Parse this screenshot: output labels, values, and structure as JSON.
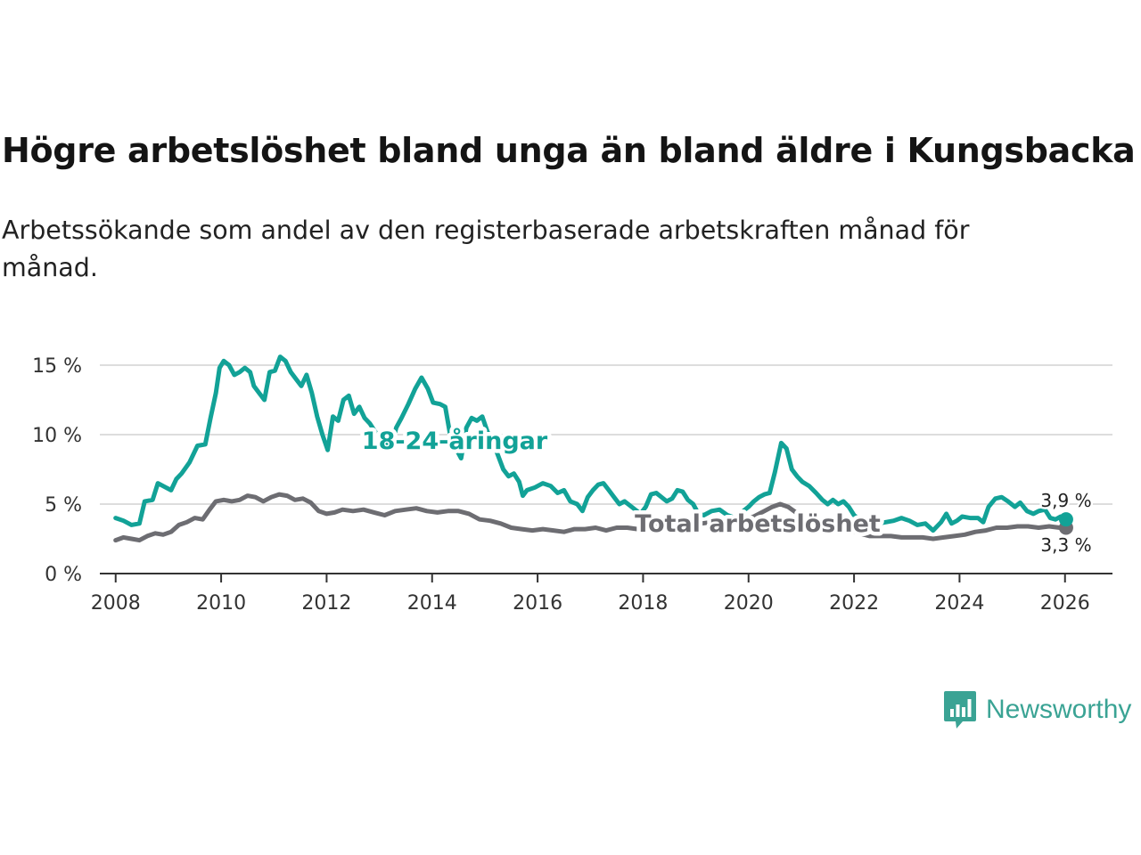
{
  "title": "Högre arbetslöshet bland unga än bland äldre i Kungsbacka",
  "subtitle": "Arbetssökande som andel av den registerbaserade arbetskraften månad för månad.",
  "brand": {
    "name": "Newsworthy",
    "icon": "newsworthy-logo-icon",
    "color": "#3aa394"
  },
  "chart_data": {
    "type": "line",
    "title": "Högre arbetslöshet bland unga än bland äldre i Kungsbacka",
    "xlabel": "",
    "ylabel": "",
    "xlim": [
      2007.7,
      2026.9
    ],
    "ylim": [
      0,
      15
    ],
    "x_ticks": [
      "2008",
      "2010",
      "2012",
      "2014",
      "2016",
      "2018",
      "2020",
      "2022",
      "2024",
      "2026"
    ],
    "y_ticks": [
      "0 %",
      "5 %",
      "10 %",
      "15 %"
    ],
    "grid": true,
    "series": [
      {
        "name": "18-24-åringar",
        "color": "#12a297",
        "end_label": "3,9 %",
        "points": [
          [
            2008.0,
            4.0
          ],
          [
            2008.15,
            3.8
          ],
          [
            2008.3,
            3.5
          ],
          [
            2008.45,
            3.6
          ],
          [
            2008.55,
            5.2
          ],
          [
            2008.7,
            5.3
          ],
          [
            2008.8,
            6.5
          ],
          [
            2008.95,
            6.2
          ],
          [
            2009.05,
            6.0
          ],
          [
            2009.15,
            6.8
          ],
          [
            2009.25,
            7.2
          ],
          [
            2009.4,
            8.0
          ],
          [
            2009.55,
            9.2
          ],
          [
            2009.7,
            9.3
          ],
          [
            2009.8,
            11.2
          ],
          [
            2009.9,
            13.0
          ],
          [
            2009.97,
            14.8
          ],
          [
            2010.05,
            15.3
          ],
          [
            2010.15,
            15.0
          ],
          [
            2010.25,
            14.3
          ],
          [
            2010.35,
            14.5
          ],
          [
            2010.45,
            14.8
          ],
          [
            2010.55,
            14.5
          ],
          [
            2010.62,
            13.5
          ],
          [
            2010.72,
            13.0
          ],
          [
            2010.82,
            12.5
          ],
          [
            2010.92,
            14.5
          ],
          [
            2011.02,
            14.6
          ],
          [
            2011.12,
            15.6
          ],
          [
            2011.22,
            15.3
          ],
          [
            2011.32,
            14.5
          ],
          [
            2011.42,
            14.0
          ],
          [
            2011.52,
            13.5
          ],
          [
            2011.62,
            14.3
          ],
          [
            2011.72,
            13.0
          ],
          [
            2011.82,
            11.3
          ],
          [
            2011.92,
            10.0
          ],
          [
            2012.02,
            8.9
          ],
          [
            2012.12,
            11.3
          ],
          [
            2012.22,
            11.0
          ],
          [
            2012.32,
            12.5
          ],
          [
            2012.42,
            12.8
          ],
          [
            2012.52,
            11.5
          ],
          [
            2012.62,
            12.0
          ],
          [
            2012.72,
            11.2
          ],
          [
            2012.82,
            10.8
          ],
          [
            2012.92,
            10.2
          ],
          [
            2013.02,
            9.8
          ],
          [
            2013.12,
            9.3
          ],
          [
            2013.22,
            9.0
          ],
          [
            2013.32,
            10.5
          ],
          [
            2013.42,
            11.2
          ],
          [
            2013.55,
            12.2
          ],
          [
            2013.68,
            13.3
          ],
          [
            2013.8,
            14.1
          ],
          [
            2013.92,
            13.3
          ],
          [
            2014.02,
            12.3
          ],
          [
            2014.15,
            12.2
          ],
          [
            2014.25,
            12.0
          ],
          [
            2014.35,
            9.8
          ],
          [
            2014.45,
            9.0
          ],
          [
            2014.55,
            8.3
          ],
          [
            2014.65,
            10.5
          ],
          [
            2014.75,
            11.2
          ],
          [
            2014.85,
            11.0
          ],
          [
            2014.95,
            11.3
          ],
          [
            2015.05,
            10.2
          ],
          [
            2015.15,
            9.5
          ],
          [
            2015.25,
            8.5
          ],
          [
            2015.35,
            7.5
          ],
          [
            2015.45,
            7.0
          ],
          [
            2015.55,
            7.2
          ],
          [
            2015.65,
            6.6
          ],
          [
            2015.72,
            5.6
          ],
          [
            2015.8,
            6.0
          ],
          [
            2015.95,
            6.2
          ],
          [
            2016.1,
            6.5
          ],
          [
            2016.25,
            6.3
          ],
          [
            2016.38,
            5.8
          ],
          [
            2016.5,
            6.0
          ],
          [
            2016.62,
            5.2
          ],
          [
            2016.75,
            5.0
          ],
          [
            2016.85,
            4.5
          ],
          [
            2016.95,
            5.5
          ],
          [
            2017.05,
            6.0
          ],
          [
            2017.15,
            6.4
          ],
          [
            2017.25,
            6.5
          ],
          [
            2017.35,
            6.0
          ],
          [
            2017.45,
            5.5
          ],
          [
            2017.55,
            5.0
          ],
          [
            2017.65,
            5.2
          ],
          [
            2017.75,
            4.9
          ],
          [
            2017.85,
            4.6
          ],
          [
            2017.95,
            4.3
          ],
          [
            2018.05,
            4.8
          ],
          [
            2018.15,
            5.7
          ],
          [
            2018.25,
            5.8
          ],
          [
            2018.35,
            5.5
          ],
          [
            2018.45,
            5.2
          ],
          [
            2018.55,
            5.4
          ],
          [
            2018.65,
            6.0
          ],
          [
            2018.75,
            5.9
          ],
          [
            2018.85,
            5.3
          ],
          [
            2018.95,
            5.0
          ],
          [
            2019.05,
            4.3
          ],
          [
            2019.15,
            4.2
          ],
          [
            2019.3,
            4.5
          ],
          [
            2019.45,
            4.6
          ],
          [
            2019.6,
            4.2
          ],
          [
            2019.75,
            4.0
          ],
          [
            2019.9,
            4.5
          ],
          [
            2020.0,
            4.8
          ],
          [
            2020.1,
            5.2
          ],
          [
            2020.2,
            5.5
          ],
          [
            2020.3,
            5.7
          ],
          [
            2020.4,
            5.8
          ],
          [
            2020.5,
            7.3
          ],
          [
            2020.62,
            9.4
          ],
          [
            2020.72,
            9.0
          ],
          [
            2020.82,
            7.5
          ],
          [
            2020.92,
            7.0
          ],
          [
            2021.02,
            6.6
          ],
          [
            2021.15,
            6.3
          ],
          [
            2021.28,
            5.8
          ],
          [
            2021.4,
            5.3
          ],
          [
            2021.5,
            5.0
          ],
          [
            2021.6,
            5.3
          ],
          [
            2021.7,
            5.0
          ],
          [
            2021.8,
            5.2
          ],
          [
            2021.9,
            4.8
          ],
          [
            2022.0,
            4.2
          ],
          [
            2022.15,
            3.8
          ],
          [
            2022.3,
            3.7
          ],
          [
            2022.45,
            3.6
          ],
          [
            2022.6,
            3.7
          ],
          [
            2022.75,
            3.8
          ],
          [
            2022.9,
            4.0
          ],
          [
            2023.05,
            3.8
          ],
          [
            2023.2,
            3.5
          ],
          [
            2023.35,
            3.6
          ],
          [
            2023.5,
            3.1
          ],
          [
            2023.65,
            3.7
          ],
          [
            2023.75,
            4.3
          ],
          [
            2023.85,
            3.6
          ],
          [
            2023.95,
            3.8
          ],
          [
            2024.05,
            4.1
          ],
          [
            2024.2,
            4.0
          ],
          [
            2024.35,
            4.0
          ],
          [
            2024.45,
            3.7
          ],
          [
            2024.55,
            4.8
          ],
          [
            2024.68,
            5.4
          ],
          [
            2024.8,
            5.5
          ],
          [
            2024.92,
            5.2
          ],
          [
            2025.05,
            4.8
          ],
          [
            2025.15,
            5.1
          ],
          [
            2025.28,
            4.5
          ],
          [
            2025.4,
            4.3
          ],
          [
            2025.5,
            4.5
          ],
          [
            2025.62,
            4.6
          ],
          [
            2025.72,
            4.0
          ],
          [
            2025.82,
            3.9
          ],
          [
            2025.92,
            4.1
          ],
          [
            2026.02,
            3.9
          ]
        ]
      },
      {
        "name": "Total arbetslöshet",
        "color": "#6d6d72",
        "end_label": "3,3 %",
        "points": [
          [
            2008.0,
            2.4
          ],
          [
            2008.15,
            2.6
          ],
          [
            2008.3,
            2.5
          ],
          [
            2008.45,
            2.4
          ],
          [
            2008.6,
            2.7
          ],
          [
            2008.75,
            2.9
          ],
          [
            2008.9,
            2.8
          ],
          [
            2009.05,
            3.0
          ],
          [
            2009.2,
            3.5
          ],
          [
            2009.35,
            3.7
          ],
          [
            2009.5,
            4.0
          ],
          [
            2009.65,
            3.9
          ],
          [
            2009.78,
            4.6
          ],
          [
            2009.9,
            5.2
          ],
          [
            2010.05,
            5.3
          ],
          [
            2010.2,
            5.2
          ],
          [
            2010.35,
            5.3
          ],
          [
            2010.5,
            5.6
          ],
          [
            2010.65,
            5.5
          ],
          [
            2010.8,
            5.2
          ],
          [
            2010.95,
            5.5
          ],
          [
            2011.1,
            5.7
          ],
          [
            2011.25,
            5.6
          ],
          [
            2011.4,
            5.3
          ],
          [
            2011.55,
            5.4
          ],
          [
            2011.7,
            5.1
          ],
          [
            2011.85,
            4.5
          ],
          [
            2012.0,
            4.3
          ],
          [
            2012.15,
            4.4
          ],
          [
            2012.3,
            4.6
          ],
          [
            2012.5,
            4.5
          ],
          [
            2012.7,
            4.6
          ],
          [
            2012.9,
            4.4
          ],
          [
            2013.1,
            4.2
          ],
          [
            2013.3,
            4.5
          ],
          [
            2013.5,
            4.6
          ],
          [
            2013.7,
            4.7
          ],
          [
            2013.9,
            4.5
          ],
          [
            2014.1,
            4.4
          ],
          [
            2014.3,
            4.5
          ],
          [
            2014.5,
            4.5
          ],
          [
            2014.7,
            4.3
          ],
          [
            2014.9,
            3.9
          ],
          [
            2015.1,
            3.8
          ],
          [
            2015.3,
            3.6
          ],
          [
            2015.5,
            3.3
          ],
          [
            2015.7,
            3.2
          ],
          [
            2015.9,
            3.1
          ],
          [
            2016.1,
            3.2
          ],
          [
            2016.3,
            3.1
          ],
          [
            2016.5,
            3.0
          ],
          [
            2016.7,
            3.2
          ],
          [
            2016.9,
            3.2
          ],
          [
            2017.1,
            3.3
          ],
          [
            2017.3,
            3.1
          ],
          [
            2017.5,
            3.3
          ],
          [
            2017.7,
            3.3
          ],
          [
            2017.9,
            3.2
          ],
          [
            2018.1,
            3.4
          ],
          [
            2018.3,
            3.6
          ],
          [
            2018.5,
            3.8
          ],
          [
            2018.7,
            3.7
          ],
          [
            2018.9,
            3.7
          ],
          [
            2019.1,
            3.6
          ],
          [
            2019.3,
            3.7
          ],
          [
            2019.5,
            3.7
          ],
          [
            2019.7,
            3.8
          ],
          [
            2019.9,
            3.9
          ],
          [
            2020.1,
            4.1
          ],
          [
            2020.3,
            4.5
          ],
          [
            2020.45,
            4.8
          ],
          [
            2020.6,
            5.0
          ],
          [
            2020.75,
            4.8
          ],
          [
            2020.9,
            4.4
          ],
          [
            2021.1,
            4.0
          ],
          [
            2021.3,
            3.8
          ],
          [
            2021.5,
            3.5
          ],
          [
            2021.7,
            3.3
          ],
          [
            2021.9,
            3.1
          ],
          [
            2022.1,
            2.9
          ],
          [
            2022.3,
            2.7
          ],
          [
            2022.5,
            2.7
          ],
          [
            2022.7,
            2.7
          ],
          [
            2022.9,
            2.6
          ],
          [
            2023.1,
            2.6
          ],
          [
            2023.3,
            2.6
          ],
          [
            2023.5,
            2.5
          ],
          [
            2023.7,
            2.6
          ],
          [
            2023.9,
            2.7
          ],
          [
            2024.1,
            2.8
          ],
          [
            2024.3,
            3.0
          ],
          [
            2024.5,
            3.1
          ],
          [
            2024.7,
            3.3
          ],
          [
            2024.9,
            3.3
          ],
          [
            2025.1,
            3.4
          ],
          [
            2025.3,
            3.4
          ],
          [
            2025.5,
            3.3
          ],
          [
            2025.7,
            3.4
          ],
          [
            2025.9,
            3.3
          ],
          [
            2026.02,
            3.3
          ]
        ]
      }
    ]
  }
}
